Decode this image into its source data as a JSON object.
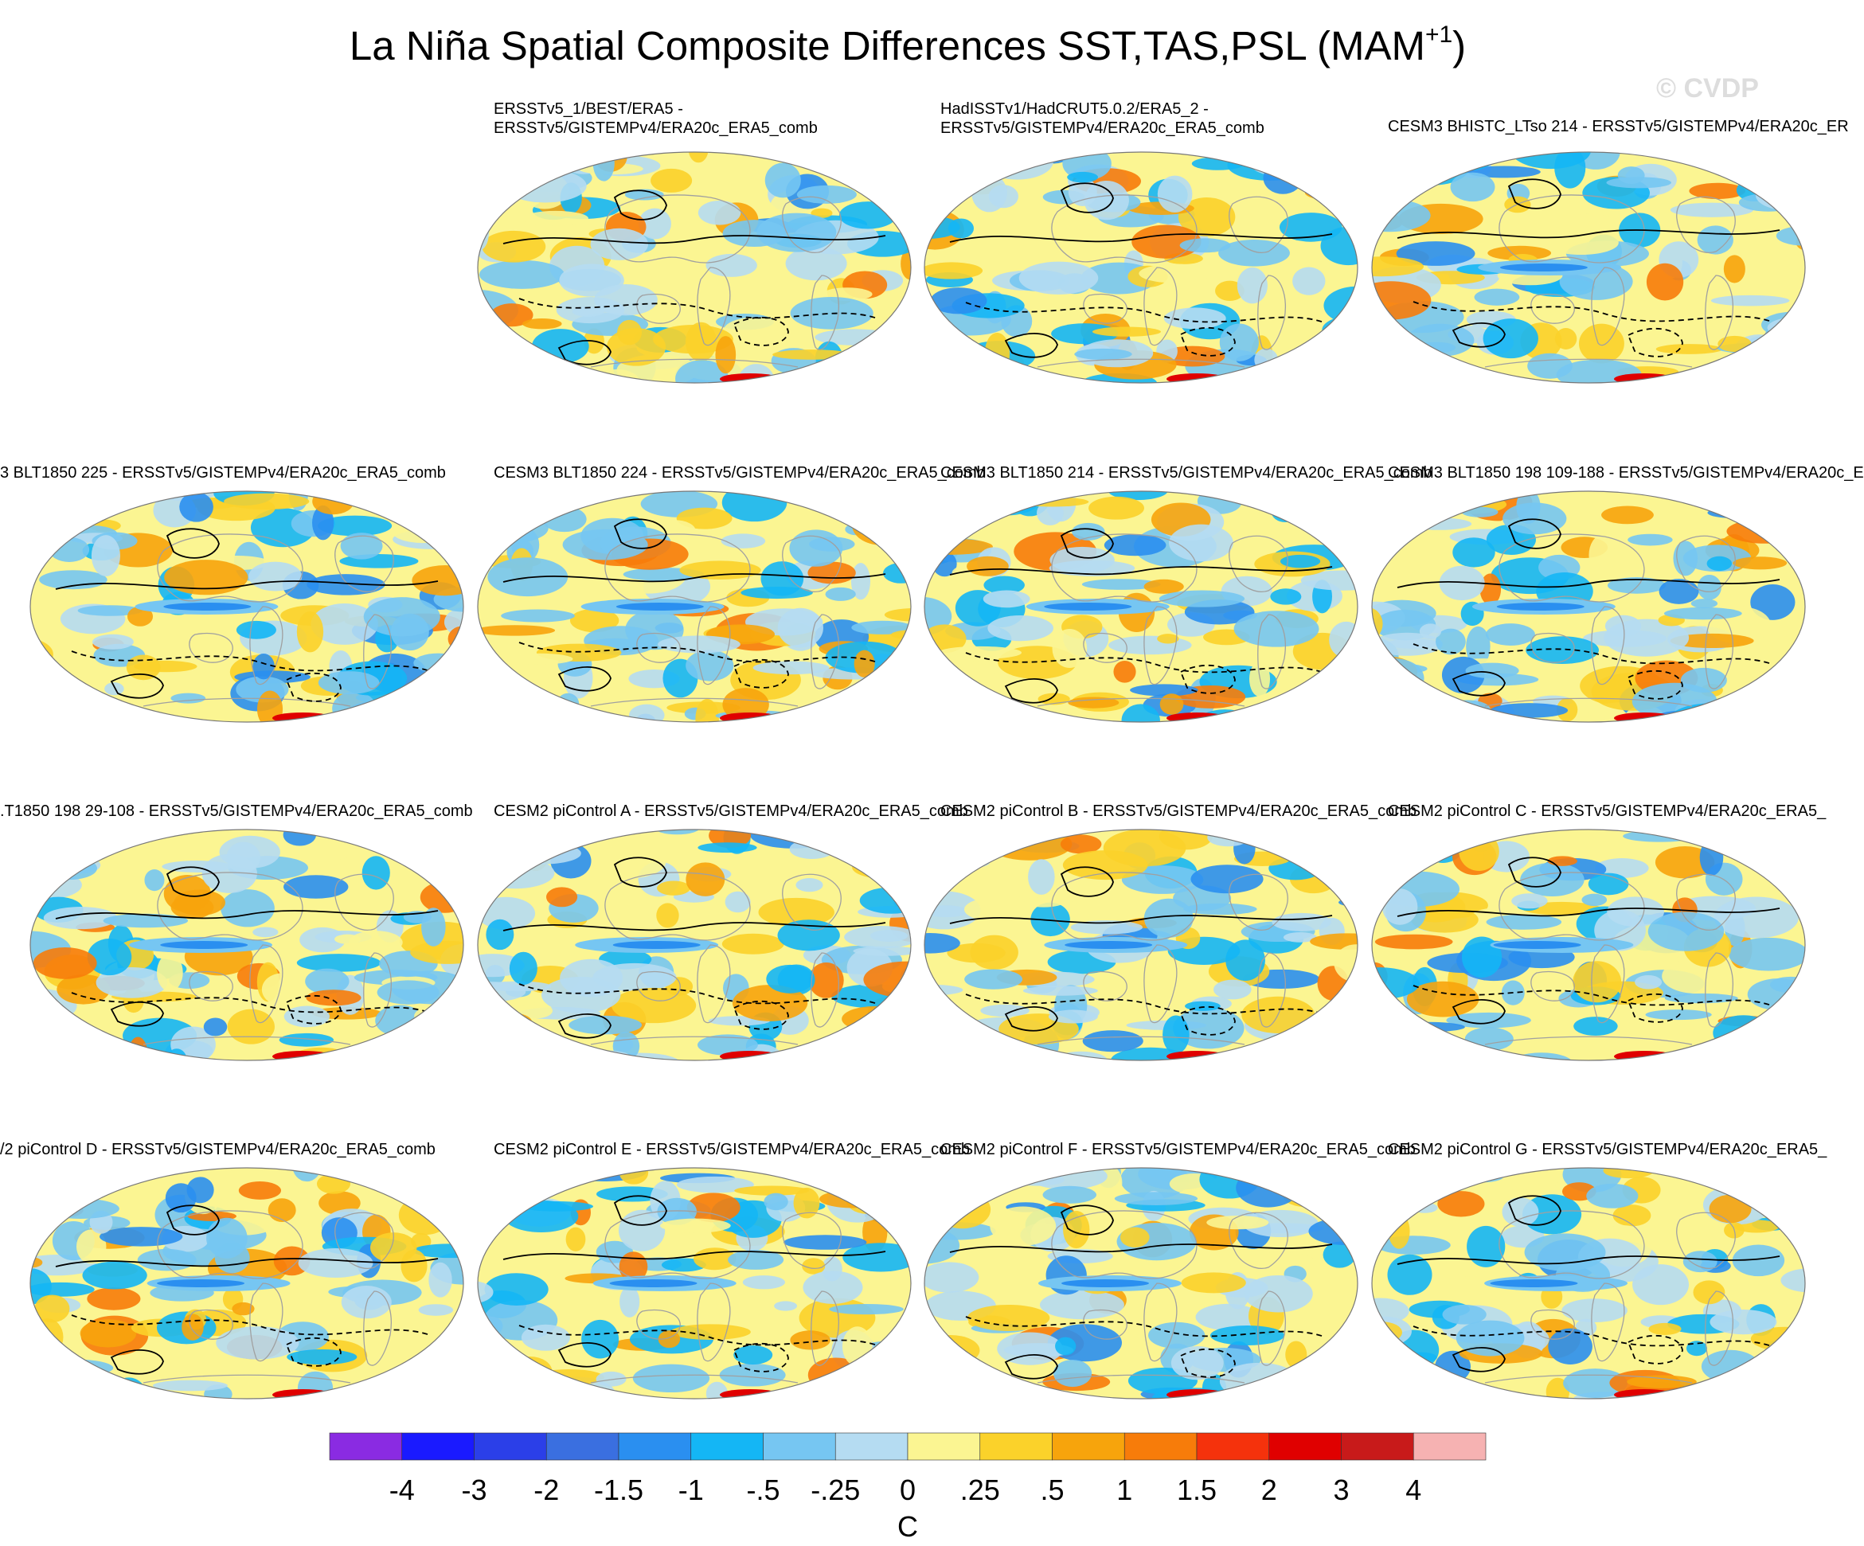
{
  "title": {
    "main": "La Niña Spatial Composite Differences SST,TAS,PSL (MAM",
    "superscript": "+1",
    "closing": ")"
  },
  "watermark": "© CVDP",
  "panels": [
    {
      "label": "ERSSTv5_1/BEST/ERA5 -\nERSSTv5/GISTEMPv4/ERA20c_ERA5_comb"
    },
    {
      "label": "HadISSTv1/HadCRUT5.0.2/ERA5_2 -\nERSSTv5/GISTEMPv4/ERA20c_ERA5_comb"
    },
    {
      "label": "CESM3 BHISTC_LTso 214 - ERSSTv5/GISTEMPv4/ERA20c_ER"
    },
    {
      "label": "3 BLT1850 225 - ERSSTv5/GISTEMPv4/ERA20c_ERA5_comb"
    },
    {
      "label": "CESM3 BLT1850 224 - ERSSTv5/GISTEMPv4/ERA20c_ERA5_comb"
    },
    {
      "label": "CESM3 BLT1850 214 - ERSSTv5/GISTEMPv4/ERA20c_ERA5_comb"
    },
    {
      "label": "CESM3 BLT1850 198 109-188 - ERSSTv5/GISTEMPv4/ERA20c_E"
    },
    {
      "label": ".T1850 198 29-108 - ERSSTv5/GISTEMPv4/ERA20c_ERA5_comb"
    },
    {
      "label": "CESM2 piControl A - ERSSTv5/GISTEMPv4/ERA20c_ERA5_comb"
    },
    {
      "label": "CESM2 piControl B - ERSSTv5/GISTEMPv4/ERA20c_ERA5_comb"
    },
    {
      "label": "CESM2 piControl C - ERSSTv5/GISTEMPv4/ERA20c_ERA5_"
    },
    {
      "label": "/2 piControl D - ERSSTv5/GISTEMPv4/ERA20c_ERA5_comb"
    },
    {
      "label": "CESM2 piControl E - ERSSTv5/GISTEMPv4/ERA20c_ERA5_comb"
    },
    {
      "label": "CESM2 piControl F - ERSSTv5/GISTEMPv4/ERA20c_ERA5_comb"
    },
    {
      "label": "CESM2 piControl G - ERSSTv5/GISTEMPv4/ERA20c_ERA5_"
    }
  ],
  "colors": {
    "bins": [
      "#8a2be2",
      "#1a1aff",
      "#2b3fe8",
      "#3a6fe0",
      "#2a8ff0",
      "#14b6f5",
      "#76c6f2",
      "#b5dcf2",
      "#fbf592",
      "#fbd22a",
      "#f7a40c",
      "#f77c0a",
      "#f5320c",
      "#e00000",
      "#c81a1a",
      "#f6b2b2"
    ],
    "land_outline": "#a0a0a0",
    "contour": "#000000"
  },
  "chart_data": {
    "type": "heatmap",
    "title": "La Niña Spatial Composite Differences SST,TAS,PSL (MAM+1)",
    "variables": [
      "SST",
      "TAS",
      "PSL"
    ],
    "season": "MAM+1",
    "overlay": "PSL contours (solid positive, dashed negative)",
    "colorbar": {
      "units": "C",
      "levels": [
        "-4",
        "-3",
        "-2",
        "-1.5",
        "-1",
        "-.5",
        "-.25",
        "0",
        ".25",
        ".5",
        "1",
        "1.5",
        "2",
        "3",
        "4"
      ],
      "level_values": [
        -4,
        -3,
        -2,
        -1.5,
        -1,
        -0.5,
        -0.25,
        0,
        0.25,
        0.5,
        1,
        1.5,
        2,
        3,
        4
      ],
      "num_bins": 16
    },
    "panel_count": 15,
    "layout": "4 rows x 4 columns, first cell empty"
  }
}
